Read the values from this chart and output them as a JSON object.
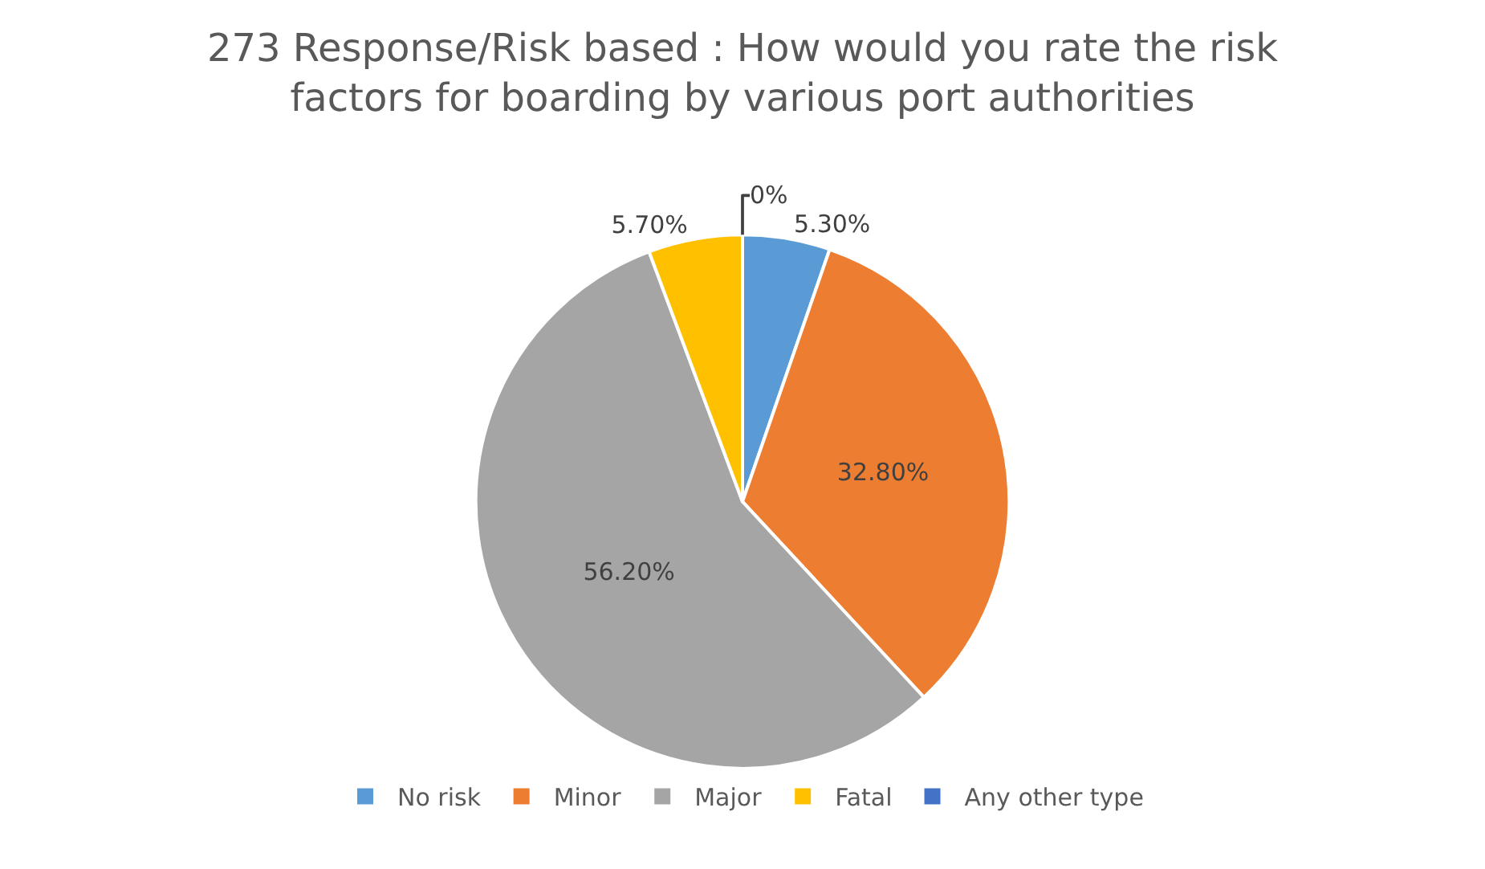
{
  "chart_data": {
    "type": "pie",
    "title": "273 Response/Risk based : How would you rate the risk factors for boarding by various port authorities",
    "categories": [
      "No risk",
      "Minor",
      "Major",
      "Fatal",
      "Any other type"
    ],
    "values": [
      5.3,
      32.8,
      56.2,
      5.7,
      0
    ],
    "colors": [
      "#5b9bd5",
      "#ed7d31",
      "#a5a5a5",
      "#ffc000",
      "#4472c4"
    ],
    "value_labels": [
      "5.30%",
      "32.80%",
      "56.20%",
      "5.70%",
      "0%"
    ],
    "legend": "bottom"
  }
}
